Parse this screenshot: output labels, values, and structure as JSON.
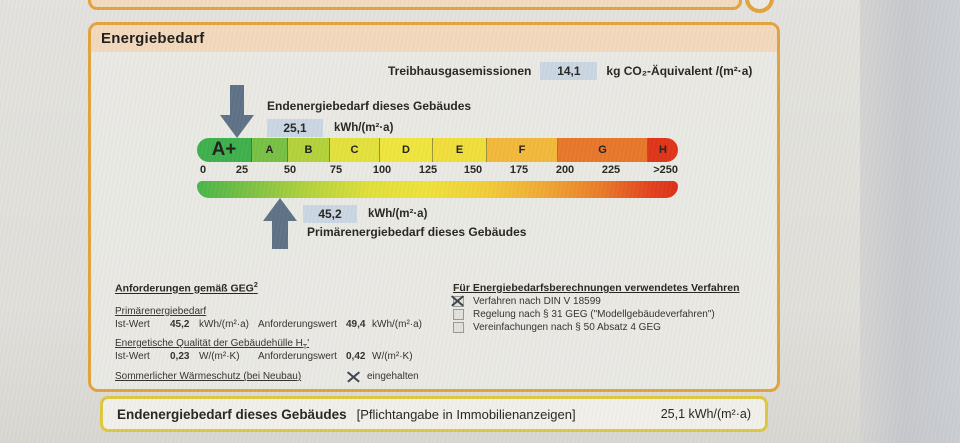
{
  "section": {
    "title": "Energiebedarf"
  },
  "emissions": {
    "label": "Treibhausgasemissionen",
    "value": "14,1",
    "unit": "kg CO₂-Äquivalent /(m²·a)"
  },
  "end_energy": {
    "label": "Endenergiebedarf dieses Gebäudes",
    "value": "25,1",
    "unit": "kWh/(m²·a)"
  },
  "primary_energy": {
    "label": "Primärenergiebedarf dieses Gebäudes",
    "value": "45,2",
    "unit": "kWh/(m²·a)"
  },
  "scale": {
    "segments": [
      {
        "label": "A+",
        "color": "#3eb04b"
      },
      {
        "label": "A",
        "color": "#77c043"
      },
      {
        "label": "B",
        "color": "#b3d23a"
      },
      {
        "label": "C",
        "color": "#e3e13b"
      },
      {
        "label": "D",
        "color": "#efe53c"
      },
      {
        "label": "E",
        "color": "#f1dd3a"
      },
      {
        "label": "F",
        "color": "#f2b93a"
      },
      {
        "label": "G",
        "color": "#e8772a"
      },
      {
        "label": "H",
        "color": "#df3418"
      }
    ],
    "ticks": [
      "0",
      "25",
      "50",
      "75",
      "100",
      "125",
      "150",
      "175",
      "200",
      "225",
      ">250"
    ]
  },
  "requirements": {
    "title": "Anforderungen gemäß GEG",
    "title_footnote": "2",
    "primary_heading": "Primärenergiebedarf",
    "primary_row": {
      "ist_label": "Ist-Wert",
      "ist_value": "45,2",
      "ist_unit": "kWh/(m²·a)",
      "req_label": "Anforderungswert",
      "req_value": "49,4",
      "req_unit": "kWh/(m²·a)"
    },
    "envelope_heading": {
      "text": "Energetische Qualität der Gebäudehülle H",
      "sub": "T",
      "suffix": "'"
    },
    "envelope_row": {
      "ist_label": "Ist-Wert",
      "ist_value": "0,23",
      "ist_unit": "W/(m²·K)",
      "req_label": "Anforderungswert",
      "req_value": "0,42",
      "req_unit": "W/(m²·K)"
    },
    "summer": {
      "label": "Sommerlicher Wärmeschutz (bei Neubau)",
      "status": "eingehalten"
    }
  },
  "method": {
    "title": "Für Energiebedarfsberechnungen verwendetes Verfahren",
    "options": [
      {
        "label": "Verfahren nach DIN V 18599",
        "checked": true
      },
      {
        "label": "Regelung nach § 31 GEG (\"Modellgebäudeverfahren\")",
        "checked": false
      },
      {
        "label": "Vereinfachungen nach § 50 Absatz 4 GEG",
        "checked": false
      }
    ]
  },
  "footer": {
    "label": "Endenergiebedarf dieses Gebäudes",
    "note": "[Pflichtangabe in Immobilienanzeigen]",
    "value": "25,1 kWh/(m²·a)"
  },
  "colors": {
    "accent_orange": "#e1a33c",
    "header_tan": "#f3d9bd",
    "value_box_blue": "#cbd6e3",
    "arrow_slate": "#5e7186",
    "footer_yellow": "#ddc83f"
  }
}
